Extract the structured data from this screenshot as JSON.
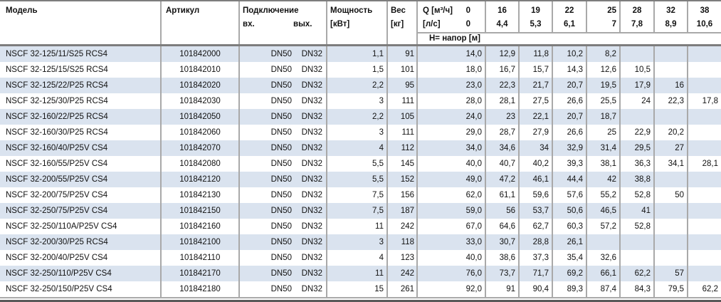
{
  "table": {
    "columns": {
      "model": "Модель",
      "article": "Артикул",
      "connection": "Подключение",
      "inlet": "вх.",
      "outlet": "вых.",
      "power": "Мощность",
      "power_unit": "[кВт]",
      "weight": "Вес",
      "weight_unit": "[кг]",
      "q_label": "Q [м³/ч]",
      "q_zero": "0",
      "ls_label": "[л/с]",
      "ls_zero": "0",
      "head_label": "Н= напор [м]"
    },
    "flow_columns": [
      {
        "m3h": "16",
        "ls": "4,4"
      },
      {
        "m3h": "19",
        "ls": "5,3"
      },
      {
        "m3h": "22",
        "ls": "6,1"
      },
      {
        "m3h": "25",
        "ls": "7"
      },
      {
        "m3h": "28",
        "ls": "7,8"
      },
      {
        "m3h": "32",
        "ls": "8,9"
      },
      {
        "m3h": "38",
        "ls": "10,6"
      }
    ],
    "rows": [
      {
        "model": "NSCF 32-125/11/S25 RCS4",
        "article": "101842000",
        "inlet": "DN50",
        "outlet": "DN32",
        "power": "1,1",
        "weight": "91",
        "heads": [
          "14,0",
          "12,9",
          "11,8",
          "10,2",
          "8,2",
          "",
          "",
          ""
        ]
      },
      {
        "model": "NSCF 32-125/15/S25 RCS4",
        "article": "101842010",
        "inlet": "DN50",
        "outlet": "DN32",
        "power": "1,5",
        "weight": "101",
        "heads": [
          "18,0",
          "16,7",
          "15,7",
          "14,3",
          "12,6",
          "10,5",
          "",
          ""
        ]
      },
      {
        "model": "NSCF 32-125/22/P25 RCS4",
        "article": "101842020",
        "inlet": "DN50",
        "outlet": "DN32",
        "power": "2,2",
        "weight": "95",
        "heads": [
          "23,0",
          "22,3",
          "21,7",
          "20,7",
          "19,5",
          "17,9",
          "16",
          ""
        ]
      },
      {
        "model": "NSCF 32-125/30/P25 RCS4",
        "article": "101842030",
        "inlet": "DN50",
        "outlet": "DN32",
        "power": "3",
        "weight": "111",
        "heads": [
          "28,0",
          "28,1",
          "27,5",
          "26,6",
          "25,5",
          "24",
          "22,3",
          "17,8"
        ]
      },
      {
        "model": "NSCF 32-160/22/P25 RCS4",
        "article": "101842050",
        "inlet": "DN50",
        "outlet": "DN32",
        "power": "2,2",
        "weight": "105",
        "heads": [
          "24,0",
          "23",
          "22,1",
          "20,7",
          "18,7",
          "",
          "",
          ""
        ]
      },
      {
        "model": "NSCF 32-160/30/P25 RCS4",
        "article": "101842060",
        "inlet": "DN50",
        "outlet": "DN32",
        "power": "3",
        "weight": "111",
        "heads": [
          "29,0",
          "28,7",
          "27,9",
          "26,6",
          "25",
          "22,9",
          "20,2",
          ""
        ]
      },
      {
        "model": "NSCF 32-160/40/P25V CS4",
        "article": "101842070",
        "inlet": "DN50",
        "outlet": "DN32",
        "power": "4",
        "weight": "112",
        "heads": [
          "34,0",
          "34,6",
          "34",
          "32,9",
          "31,4",
          "29,5",
          "27",
          ""
        ]
      },
      {
        "model": "NSCF 32-160/55/P25V CS4",
        "article": "101842080",
        "inlet": "DN50",
        "outlet": "DN32",
        "power": "5,5",
        "weight": "145",
        "heads": [
          "40,0",
          "40,7",
          "40,2",
          "39,3",
          "38,1",
          "36,3",
          "34,1",
          "28,1"
        ]
      },
      {
        "model": "NSCF 32-200/55/P25V CS4",
        "article": "101842120",
        "inlet": "DN50",
        "outlet": "DN32",
        "power": "5,5",
        "weight": "152",
        "heads": [
          "49,0",
          "47,2",
          "46,1",
          "44,4",
          "42",
          "38,8",
          "",
          ""
        ]
      },
      {
        "model": "NSCF 32-200/75/P25V CS4",
        "article": "101842130",
        "inlet": "DN50",
        "outlet": "DN32",
        "power": "7,5",
        "weight": "156",
        "heads": [
          "62,0",
          "61,1",
          "59,6",
          "57,6",
          "55,2",
          "52,8",
          "50",
          ""
        ]
      },
      {
        "model": "NSCF 32-250/75/P25V CS4",
        "article": "101842150",
        "inlet": "DN50",
        "outlet": "DN32",
        "power": "7,5",
        "weight": "187",
        "heads": [
          "59,0",
          "56",
          "53,7",
          "50,6",
          "46,5",
          "41",
          "",
          ""
        ]
      },
      {
        "model": "NSCF 32-250/110A/P25V CS4",
        "article": "101842160",
        "inlet": "DN50",
        "outlet": "DN32",
        "power": "11",
        "weight": "242",
        "heads": [
          "67,0",
          "64,6",
          "62,7",
          "60,3",
          "57,2",
          "52,8",
          "",
          ""
        ]
      },
      {
        "model": "NSCF 32-200/30/P25 RCS4",
        "article": "101842100",
        "inlet": "DN50",
        "outlet": "DN32",
        "power": "3",
        "weight": "118",
        "heads": [
          "33,0",
          "30,7",
          "28,8",
          "26,1",
          "",
          "",
          "",
          ""
        ]
      },
      {
        "model": "NSCF 32-200/40/P25V CS4",
        "article": "101842110",
        "inlet": "DN50",
        "outlet": "DN32",
        "power": "4",
        "weight": "123",
        "heads": [
          "40,0",
          "38,6",
          "37,3",
          "35,4",
          "32,6",
          "",
          "",
          ""
        ]
      },
      {
        "model": "NSCF 32-250/110/P25V CS4",
        "article": "101842170",
        "inlet": "DN50",
        "outlet": "DN32",
        "power": "11",
        "weight": "242",
        "heads": [
          "76,0",
          "73,7",
          "71,7",
          "69,2",
          "66,1",
          "62,2",
          "57",
          ""
        ]
      },
      {
        "model": "NSCF 32-250/150/P25V CS4",
        "article": "101842180",
        "inlet": "DN50",
        "outlet": "DN32",
        "power": "15",
        "weight": "261",
        "heads": [
          "92,0",
          "91",
          "90,4",
          "89,3",
          "87,4",
          "84,3",
          "79,5",
          "62,2"
        ]
      }
    ]
  },
  "colors": {
    "stripe_blue": "#dae3ef",
    "grid_border": "#a9a9a9",
    "heavy_border": "#7d7d7d",
    "bottom_rule": "#595959",
    "text": "#111111"
  }
}
